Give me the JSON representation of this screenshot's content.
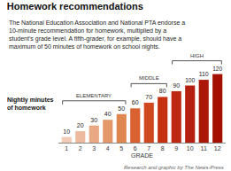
{
  "chart_data": {
    "type": "bar",
    "title": "Homework recommendations",
    "subtitle": [
      "The National Education Association and National PTA endorse a",
      "10-minute recommendation for homework, multiplied by a",
      "student's grade level. A fifth-grader, for example, should have a",
      "maximum of 50 minutes of homework on school nights."
    ],
    "categories": [
      "1",
      "2",
      "3",
      "4",
      "5",
      "6",
      "7",
      "8",
      "9",
      "10",
      "11",
      "12"
    ],
    "values": [
      10,
      20,
      30,
      40,
      50,
      60,
      70,
      80,
      90,
      100,
      110,
      120
    ],
    "colors": [
      "#f2cbb8",
      "#edba9e",
      "#e8a884",
      "#e3976a",
      "#de8650",
      "#d96030",
      "#cf4820",
      "#c53010",
      "#be2810",
      "#b52010",
      "#ac1808",
      "#a31000"
    ],
    "xlabel": "GRADE",
    "ylabel": [
      "Nightly minutes",
      "of homework"
    ],
    "source": "Research and graphic by The News-Press",
    "annotations": [
      {
        "text": "ELEMENTARY",
        "from": "1",
        "to": "5"
      },
      {
        "text": "MIDDLE",
        "from": "6",
        "to": "8"
      },
      {
        "text": "HIGH",
        "from": "9",
        "to": "12"
      }
    ],
    "ylim": [
      0,
      138
    ],
    "yticks": [],
    "grid": false,
    "data_labels": true,
    "tick_labels": "x"
  }
}
